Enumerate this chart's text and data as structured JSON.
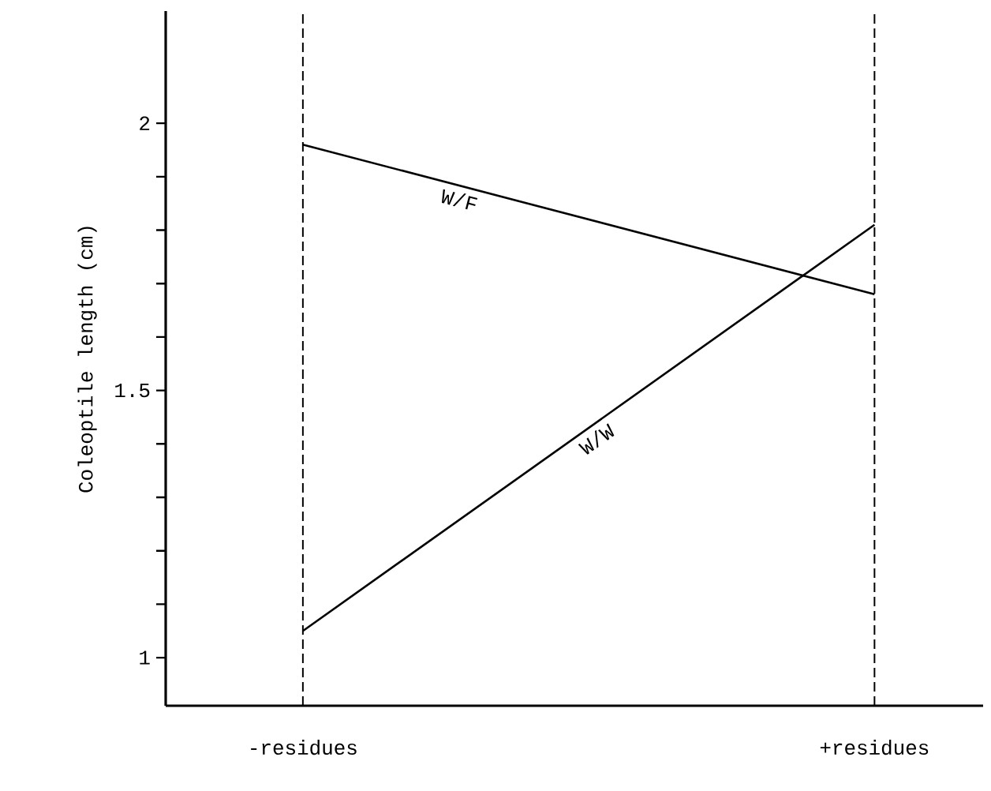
{
  "chart_data": {
    "type": "line",
    "ylabel": "Coleoptile length (cm)",
    "categories": [
      "-residues",
      "+residues"
    ],
    "series": [
      {
        "name": "W/F",
        "color": "#000000",
        "values": [
          1.96,
          1.68
        ]
      },
      {
        "name": "W/W",
        "color": "#000000",
        "values": [
          1.05,
          1.81
        ]
      }
    ],
    "ylim": [
      0.91,
      2.21
    ],
    "yticks": [
      1,
      {
        "value": 1.1,
        "label": null
      },
      {
        "value": 1.2,
        "label": null
      },
      {
        "value": 1.3,
        "label": null
      },
      {
        "value": 1.4,
        "label": null
      },
      1.5,
      {
        "value": 1.6,
        "label": null
      },
      {
        "value": 1.7,
        "label": null
      },
      {
        "value": 1.8,
        "label": null
      },
      {
        "value": 1.9,
        "label": null
      },
      2
    ],
    "grid": "x",
    "marker": "none",
    "line_style": "solid",
    "legend": false
  }
}
